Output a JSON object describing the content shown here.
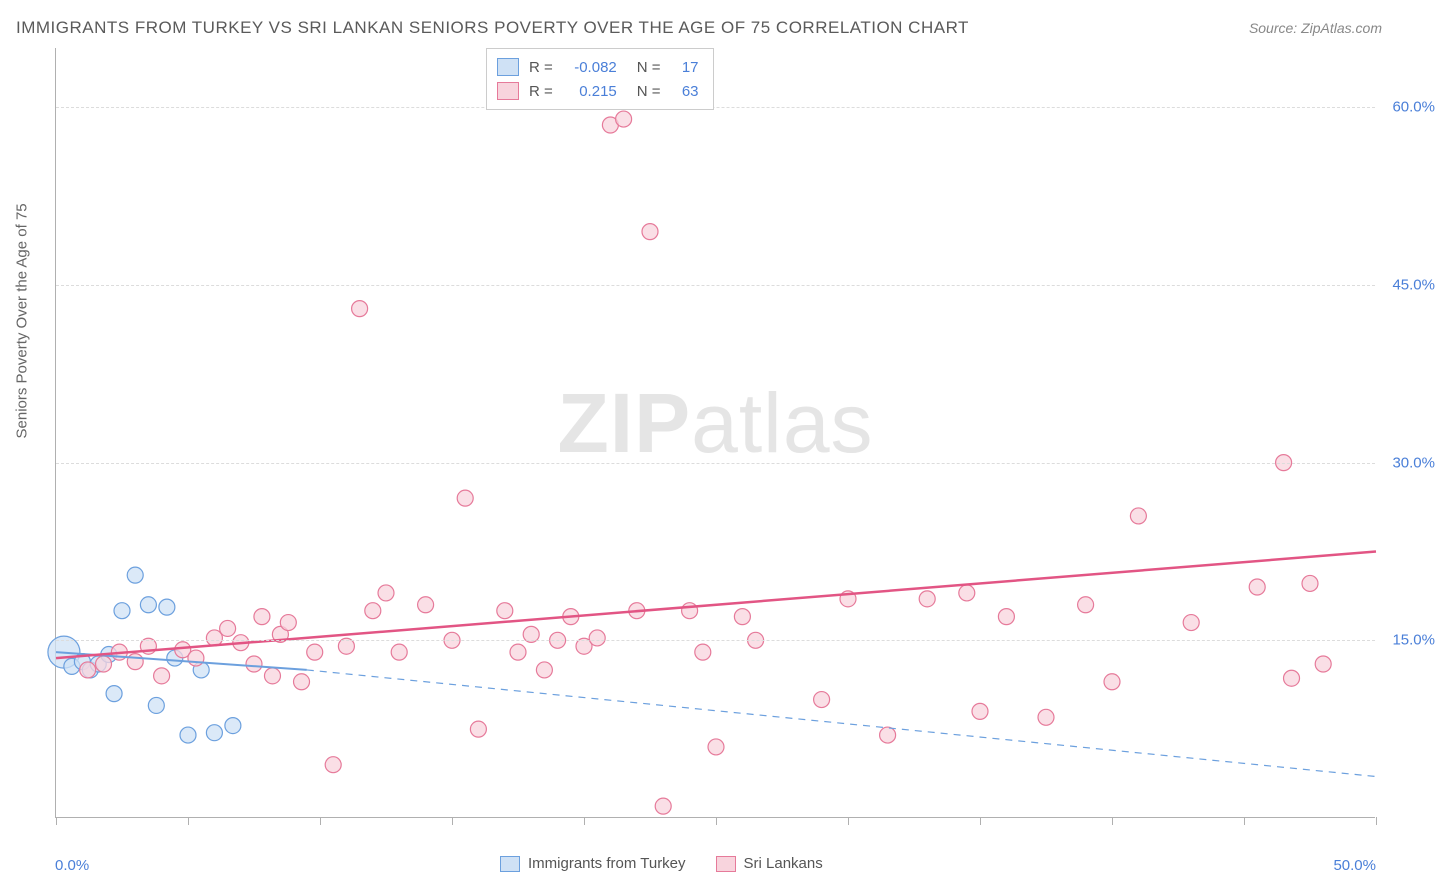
{
  "title": "IMMIGRANTS FROM TURKEY VS SRI LANKAN SENIORS POVERTY OVER THE AGE OF 75 CORRELATION CHART",
  "source_label": "Source:",
  "source_name": "ZipAtlas.com",
  "yaxis_title": "Seniors Poverty Over the Age of 75",
  "watermark_bold": "ZIP",
  "watermark_rest": "atlas",
  "chart": {
    "type": "scatter",
    "xlim": [
      0,
      50
    ],
    "ylim": [
      0,
      65
    ],
    "xaxis_label_min": "0.0%",
    "xaxis_label_max": "50.0%",
    "xtick_positions": [
      0,
      5,
      10,
      15,
      20,
      25,
      30,
      35,
      40,
      45,
      50
    ],
    "ylines": [
      {
        "y": 15,
        "label": "15.0%"
      },
      {
        "y": 30,
        "label": "30.0%"
      },
      {
        "y": 45,
        "label": "45.0%"
      },
      {
        "y": 60,
        "label": "60.0%"
      }
    ],
    "background_color": "#ffffff",
    "grid_color": "#dcdcdc",
    "axis_color": "#b0b0b0",
    "tick_label_color": "#4a7fd8",
    "series": [
      {
        "name": "Immigrants from Turkey",
        "marker_fill": "#cfe1f5",
        "marker_stroke": "#6ca0de",
        "marker_radius": 8,
        "R": "-0.082",
        "N": "17",
        "trend": {
          "x1": 0,
          "y1": 14.0,
          "x2": 9.5,
          "y2": 12.5,
          "solid_until_x": 9.5,
          "dashed_to_x": 50,
          "dashed_to_y": 3.5,
          "color": "#6ca0de",
          "width": 2
        },
        "points": [
          {
            "x": 0.3,
            "y": 14.0,
            "r": 16
          },
          {
            "x": 0.6,
            "y": 12.8
          },
          {
            "x": 1.0,
            "y": 13.2
          },
          {
            "x": 1.3,
            "y": 12.5
          },
          {
            "x": 1.6,
            "y": 13.0
          },
          {
            "x": 2.0,
            "y": 13.8
          },
          {
            "x": 2.2,
            "y": 10.5
          },
          {
            "x": 2.5,
            "y": 17.5
          },
          {
            "x": 3.0,
            "y": 20.5
          },
          {
            "x": 3.5,
            "y": 18.0
          },
          {
            "x": 3.8,
            "y": 9.5
          },
          {
            "x": 4.2,
            "y": 17.8
          },
          {
            "x": 4.5,
            "y": 13.5
          },
          {
            "x": 5.0,
            "y": 7.0
          },
          {
            "x": 5.5,
            "y": 12.5
          },
          {
            "x": 6.0,
            "y": 7.2
          },
          {
            "x": 6.7,
            "y": 7.8
          }
        ]
      },
      {
        "name": "Sri Lankans",
        "marker_fill": "#f8d4dd",
        "marker_stroke": "#e67a9a",
        "marker_radius": 8,
        "R": "0.215",
        "N": "63",
        "trend": {
          "x1": 0,
          "y1": 13.5,
          "x2": 50,
          "y2": 22.5,
          "color": "#e25584",
          "width": 2.5
        },
        "points": [
          {
            "x": 1.2,
            "y": 12.5
          },
          {
            "x": 1.8,
            "y": 13.0
          },
          {
            "x": 2.4,
            "y": 14.0
          },
          {
            "x": 3.0,
            "y": 13.2
          },
          {
            "x": 3.5,
            "y": 14.5
          },
          {
            "x": 4.0,
            "y": 12.0
          },
          {
            "x": 4.8,
            "y": 14.2
          },
          {
            "x": 5.3,
            "y": 13.5
          },
          {
            "x": 6.0,
            "y": 15.2
          },
          {
            "x": 6.5,
            "y": 16.0
          },
          {
            "x": 7.0,
            "y": 14.8
          },
          {
            "x": 7.5,
            "y": 13.0
          },
          {
            "x": 7.8,
            "y": 17.0
          },
          {
            "x": 8.2,
            "y": 12.0
          },
          {
            "x": 8.5,
            "y": 15.5
          },
          {
            "x": 8.8,
            "y": 16.5
          },
          {
            "x": 9.3,
            "y": 11.5
          },
          {
            "x": 9.8,
            "y": 14.0
          },
          {
            "x": 10.5,
            "y": 4.5
          },
          {
            "x": 11.0,
            "y": 14.5
          },
          {
            "x": 11.5,
            "y": 43.0
          },
          {
            "x": 12.0,
            "y": 17.5
          },
          {
            "x": 12.5,
            "y": 19.0
          },
          {
            "x": 13.0,
            "y": 14.0
          },
          {
            "x": 14.0,
            "y": 18.0
          },
          {
            "x": 15.0,
            "y": 15.0
          },
          {
            "x": 15.5,
            "y": 27.0
          },
          {
            "x": 16.0,
            "y": 7.5
          },
          {
            "x": 17.0,
            "y": 17.5
          },
          {
            "x": 17.5,
            "y": 14.0
          },
          {
            "x": 18.0,
            "y": 15.5
          },
          {
            "x": 18.5,
            "y": 12.5
          },
          {
            "x": 19.0,
            "y": 15.0
          },
          {
            "x": 19.5,
            "y": 17.0
          },
          {
            "x": 20.0,
            "y": 14.5
          },
          {
            "x": 20.5,
            "y": 15.2
          },
          {
            "x": 21.0,
            "y": 58.5
          },
          {
            "x": 21.5,
            "y": 59.0
          },
          {
            "x": 22.0,
            "y": 17.5
          },
          {
            "x": 22.5,
            "y": 49.5
          },
          {
            "x": 23.0,
            "y": 1.0
          },
          {
            "x": 24.0,
            "y": 17.5
          },
          {
            "x": 24.5,
            "y": 14.0
          },
          {
            "x": 25.0,
            "y": 6.0
          },
          {
            "x": 26.0,
            "y": 17.0
          },
          {
            "x": 26.5,
            "y": 15.0
          },
          {
            "x": 29.0,
            "y": 10.0
          },
          {
            "x": 30.0,
            "y": 18.5
          },
          {
            "x": 31.5,
            "y": 7.0
          },
          {
            "x": 33.0,
            "y": 18.5
          },
          {
            "x": 34.5,
            "y": 19.0
          },
          {
            "x": 35.0,
            "y": 9.0
          },
          {
            "x": 36.0,
            "y": 17.0
          },
          {
            "x": 37.5,
            "y": 8.5
          },
          {
            "x": 39.0,
            "y": 18.0
          },
          {
            "x": 40.0,
            "y": 11.5
          },
          {
            "x": 41.0,
            "y": 25.5
          },
          {
            "x": 43.0,
            "y": 16.5
          },
          {
            "x": 45.5,
            "y": 19.5
          },
          {
            "x": 46.5,
            "y": 30.0
          },
          {
            "x": 46.8,
            "y": 11.8
          },
          {
            "x": 47.5,
            "y": 19.8
          },
          {
            "x": 48.0,
            "y": 13.0
          }
        ]
      }
    ]
  },
  "legend_top_labels": {
    "R": "R =",
    "N": "N ="
  },
  "legend_bottom": [
    {
      "label": "Immigrants from Turkey",
      "fill": "#cfe1f5",
      "stroke": "#6ca0de"
    },
    {
      "label": "Sri Lankans",
      "fill": "#f8d4dd",
      "stroke": "#e67a9a"
    }
  ]
}
